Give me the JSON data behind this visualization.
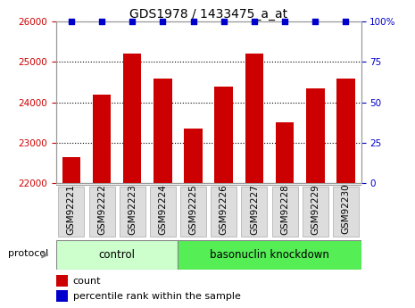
{
  "title": "GDS1978 / 1433475_a_at",
  "samples": [
    "GSM92221",
    "GSM92222",
    "GSM92223",
    "GSM92224",
    "GSM92225",
    "GSM92226",
    "GSM92227",
    "GSM92228",
    "GSM92229",
    "GSM92230"
  ],
  "counts": [
    22650,
    24200,
    25200,
    24600,
    23350,
    24400,
    25200,
    23500,
    24350,
    24600
  ],
  "percentile_ranks": [
    100,
    100,
    100,
    100,
    100,
    100,
    100,
    100,
    100,
    100
  ],
  "ylim_left": [
    22000,
    26000
  ],
  "ylim_right": [
    0,
    100
  ],
  "yticks_left": [
    22000,
    23000,
    24000,
    25000,
    26000
  ],
  "yticks_right": [
    0,
    25,
    50,
    75,
    100
  ],
  "bar_color": "#cc0000",
  "dot_color": "#0000cc",
  "control_color": "#ccffcc",
  "knockdown_color": "#55ee55",
  "control_label": "control",
  "knockdown_label": "basonuclin knockdown",
  "protocol_label": "protocol",
  "legend_count_label": "count",
  "legend_percentile_label": "percentile rank within the sample",
  "title_fontsize": 10,
  "tick_fontsize": 7.5,
  "label_fontsize": 8,
  "proto_fontsize": 8.5,
  "background_color": "#ffffff",
  "bar_bottom": 22000,
  "n_control": 4,
  "n_knockdown": 6
}
